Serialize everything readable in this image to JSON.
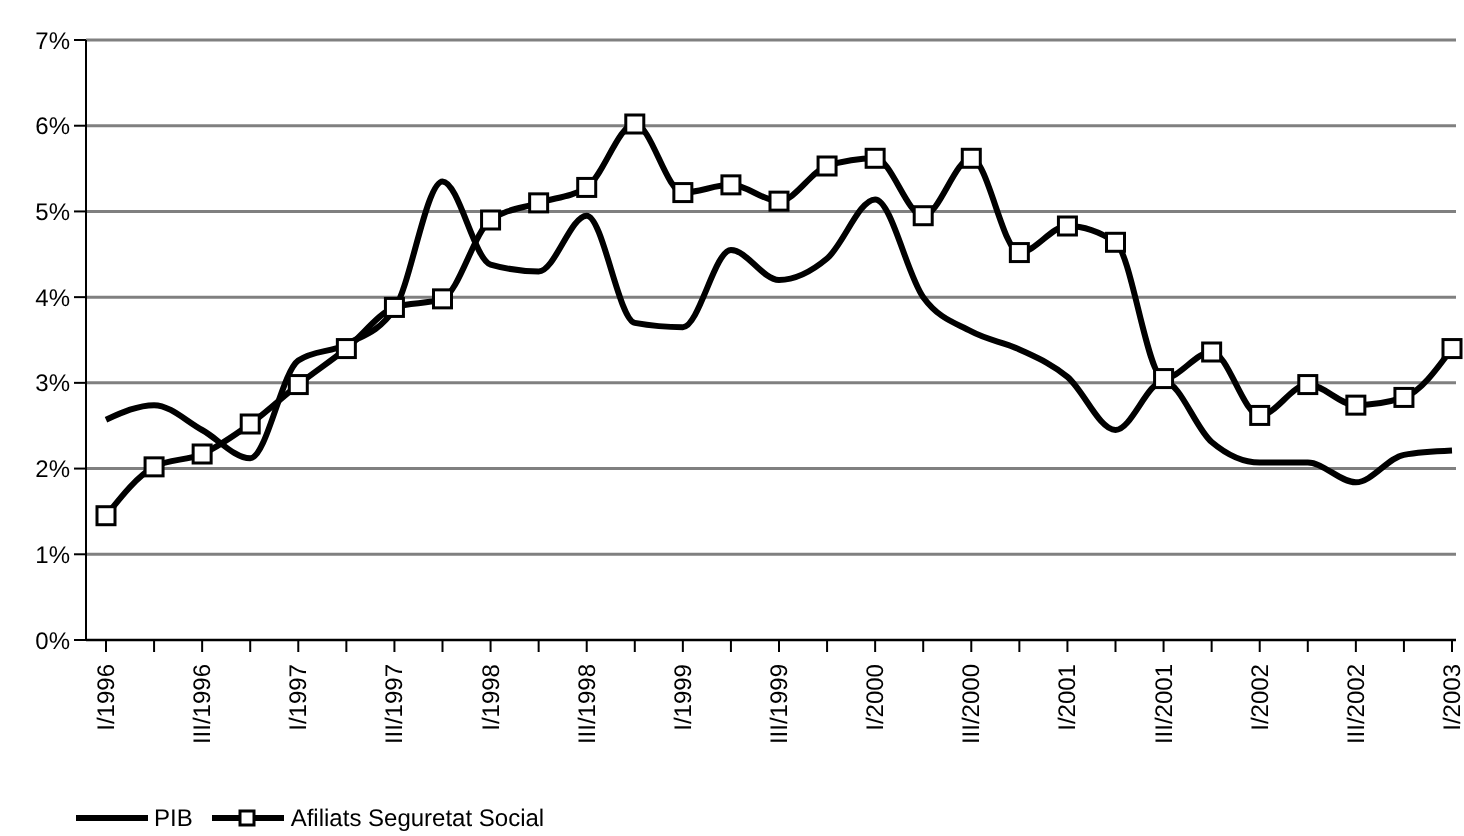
{
  "chart_data": {
    "type": "line",
    "categories": [
      "I/1996",
      null,
      "III/1996",
      null,
      "I/1997",
      null,
      "III/1997",
      null,
      "I/1998",
      null,
      "III/1998",
      null,
      "I/1999",
      null,
      "III/1999",
      null,
      "I/2000",
      null,
      "III/2000",
      null,
      "I/2001",
      null,
      "III/2001",
      null,
      "I/2002",
      null,
      "III/2002",
      null,
      "I/2003"
    ],
    "ylim": [
      0,
      7
    ],
    "yticks": [
      {
        "value": 0,
        "label": "0%"
      },
      {
        "value": 1,
        "label": "1%"
      },
      {
        "value": 2,
        "label": "2%"
      },
      {
        "value": 3,
        "label": "3%"
      },
      {
        "value": 4,
        "label": "4%"
      },
      {
        "value": 5,
        "label": "5%"
      },
      {
        "value": 6,
        "label": "6%"
      },
      {
        "value": 7,
        "label": "7%"
      }
    ],
    "grid": "y",
    "legend": "bottom",
    "line_style": "solid",
    "series": [
      {
        "name": "PIB",
        "color": "#000000",
        "marker": "none",
        "values": [
          2.57,
          2.74,
          2.45,
          2.12,
          3.26,
          3.45,
          3.86,
          5.35,
          4.38,
          4.3,
          4.95,
          3.7,
          3.65,
          4.55,
          4.2,
          4.45,
          5.14,
          4.0,
          3.6,
          3.39,
          3.07,
          2.45,
          3.02,
          2.31,
          2.07,
          2.07,
          1.84,
          2.16,
          2.21
        ]
      },
      {
        "name": "Afiliats Seguretat Social",
        "color": "#000000",
        "marker": "square",
        "values": [
          1.45,
          2.02,
          2.17,
          2.52,
          2.98,
          3.4,
          3.88,
          3.98,
          4.9,
          5.1,
          5.28,
          6.02,
          5.22,
          5.31,
          5.12,
          5.53,
          5.62,
          4.95,
          5.62,
          4.52,
          4.83,
          4.64,
          3.05,
          3.36,
          2.62,
          2.98,
          2.74,
          2.83,
          3.4
        ]
      }
    ]
  }
}
